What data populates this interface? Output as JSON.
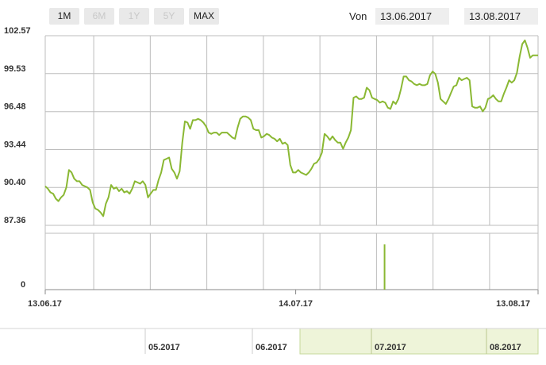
{
  "range_buttons": [
    {
      "label": "1M",
      "enabled": true
    },
    {
      "label": "6M",
      "enabled": false
    },
    {
      "label": "1Y",
      "enabled": false
    },
    {
      "label": "5Y",
      "enabled": false
    },
    {
      "label": "MAX",
      "enabled": true
    }
  ],
  "date_range": {
    "from_label": "Von",
    "from": "13.06.2017",
    "to": "13.08.2017"
  },
  "colors": {
    "line": "#8ab833",
    "grid": "#bdbdbd",
    "navigator_fill": "#eef4d9",
    "navigator_border": "#c6d99a"
  },
  "navigator": {
    "labels": [
      "05.2017",
      "06.2017",
      "07.2017",
      "08.2017"
    ],
    "selected_range": [
      "13.06.2017",
      "13.08.2017"
    ]
  },
  "chart_data": {
    "type": "line",
    "y_ticks": [
      "102.57",
      "99.53",
      "96.48",
      "93.44",
      "90.40",
      "87.36"
    ],
    "ylim": [
      87.36,
      102.57
    ],
    "x_ticks": [
      "13.06.17",
      "14.07.17",
      "13.08.17"
    ],
    "xlim": [
      "2017-06-13",
      "2017-08-13"
    ],
    "grid": true,
    "series": [
      {
        "values": [
          90.5,
          90.3,
          90.0,
          89.9,
          89.5,
          89.3,
          89.6,
          89.8,
          90.4,
          91.8,
          91.6,
          91.1,
          90.9,
          90.9,
          90.6,
          90.5,
          90.4,
          90.2,
          89.2,
          88.7,
          88.6,
          88.4,
          88.1,
          89.1,
          89.6,
          90.6,
          90.3,
          90.4,
          90.1,
          90.3,
          90.0,
          90.1,
          89.9,
          90.3,
          90.9,
          90.8,
          90.7,
          90.9,
          90.6,
          89.6,
          89.9,
          90.2,
          90.2,
          91.0,
          91.6,
          92.6,
          92.7,
          92.8,
          91.9,
          91.6,
          91.1,
          91.7,
          94.0,
          95.7,
          95.6,
          95.1,
          95.8,
          95.8,
          95.9,
          95.8,
          95.6,
          95.3,
          94.8,
          94.7,
          94.8,
          94.8,
          94.6,
          94.8,
          94.8,
          94.8,
          94.6,
          94.4,
          94.3,
          95.2,
          95.9,
          96.1,
          96.1,
          96.0,
          95.8,
          95.1,
          95.0,
          95.0,
          94.4,
          94.5,
          94.7,
          94.6,
          94.4,
          94.3,
          94.1,
          94.3,
          93.9,
          94.0,
          93.8,
          92.2,
          91.6,
          91.6,
          91.8,
          91.6,
          91.5,
          91.4,
          91.6,
          91.9,
          92.3,
          92.4,
          92.7,
          93.2,
          94.7,
          94.5,
          94.2,
          94.5,
          94.2,
          94.0,
          94.0,
          93.5,
          94.0,
          94.4,
          95.0,
          97.6,
          97.7,
          97.5,
          97.5,
          97.6,
          98.4,
          98.2,
          97.6,
          97.5,
          97.4,
          97.2,
          97.3,
          97.2,
          96.8,
          96.7,
          97.3,
          97.1,
          97.5,
          98.3,
          99.3,
          99.3,
          99.0,
          98.9,
          98.7,
          98.6,
          98.7,
          98.6,
          98.6,
          98.7,
          99.4,
          99.7,
          99.5,
          98.8,
          97.5,
          97.3,
          97.1,
          97.5,
          98.0,
          98.5,
          98.6,
          99.2,
          99.0,
          99.1,
          99.2,
          99.0,
          96.9,
          96.8,
          96.8,
          96.9,
          96.5,
          96.8,
          97.5,
          97.6,
          97.8,
          97.5,
          97.3,
          97.3,
          97.9,
          98.4,
          99.0,
          98.8,
          99.0,
          99.6,
          100.9,
          101.9,
          102.2,
          101.6,
          100.8,
          101.0,
          101.0,
          101.0
        ]
      }
    ],
    "volume": {
      "values": [
        0,
        1
      ],
      "ticks": [
        "0"
      ],
      "spike_date": "2017-07-25"
    }
  }
}
